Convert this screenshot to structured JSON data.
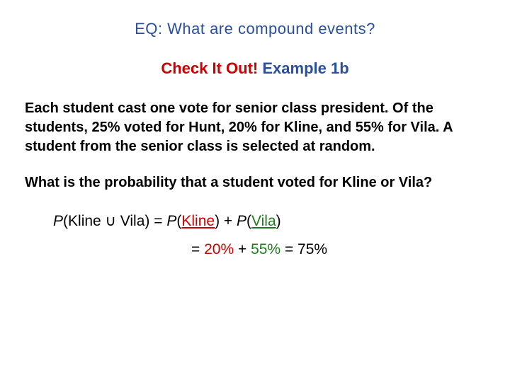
{
  "colors": {
    "title_blue": "#2a4f9e",
    "accent_red": "#cc0000",
    "accent_green": "#1f7a1f",
    "text_black": "#000000",
    "background": "#ffffff"
  },
  "typography": {
    "body_font": "Verdana",
    "title_fontsize_pt": 17,
    "body_fontsize_pt": 15,
    "equation_fontsize_pt": 16
  },
  "eq_title": "EQ:  What are compound events?",
  "check_label": "Check It Out! ",
  "example_label": "Example 1b",
  "problem": "Each student cast one vote for senior class president. Of the students, 25% voted for Hunt, 20% for Kline, and 55% for Vila. A student from the senior class is selected at random.",
  "question": "What is the probability that a student voted for Kline or Vila?",
  "eq1": {
    "P1": "P",
    "open1": "(",
    "kline1": "Kline ",
    "union": "∪",
    "vila1": " Vila",
    "close1": ")",
    "eq": " = ",
    "P2": "P",
    "open2": "(",
    "kline2": "Kline",
    "close2": ")",
    "plus": " + ",
    "P3": "P",
    "open3": "(",
    "vila2": "Vila",
    "close3": ")"
  },
  "eq2": {
    "eq": "= ",
    "v1": "20%",
    "plus": " + ",
    "v2": "55%",
    "eq2": " = ",
    "ans": "75%"
  }
}
